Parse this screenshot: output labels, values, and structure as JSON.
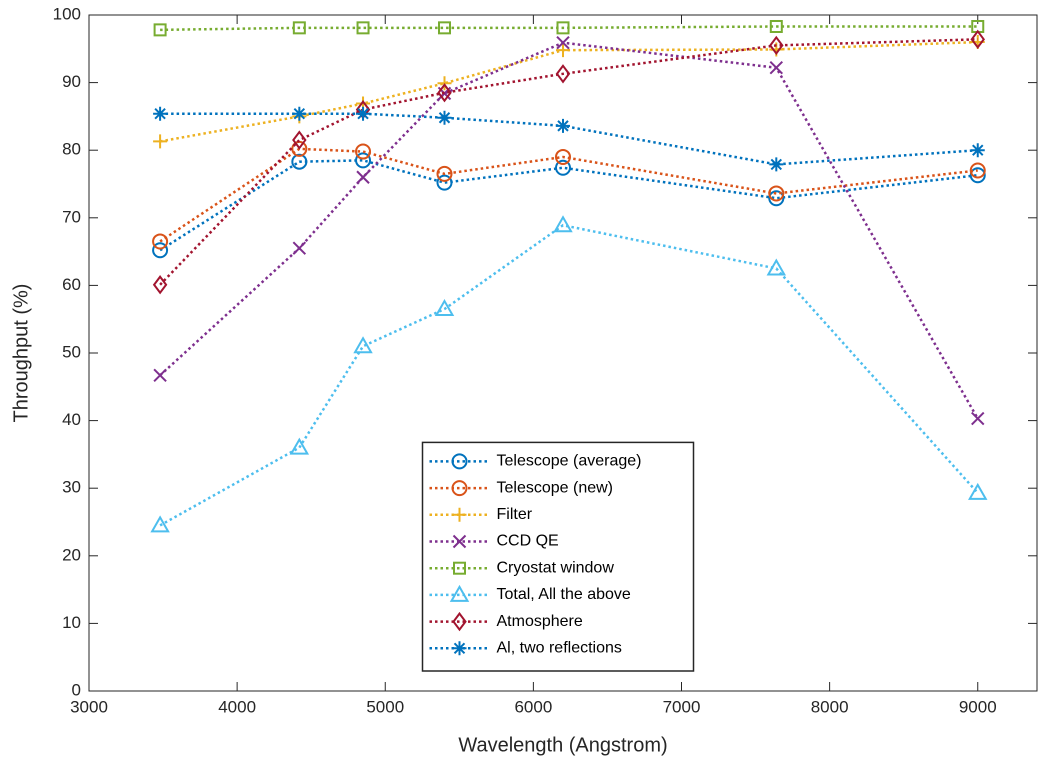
{
  "chart_data": {
    "type": "line",
    "x_label": "Wavelength (Angstrom)",
    "y_label": "Throughput (%)",
    "x": [
      3480,
      4420,
      4850,
      5400,
      6200,
      7640,
      9000
    ],
    "series": [
      {
        "name": "Telescope (average)",
        "color": "#0072bd",
        "marker": "circle",
        "values": [
          65.2,
          78.3,
          78.5,
          75.2,
          77.4,
          72.9,
          76.3
        ]
      },
      {
        "name": "Telescope (new)",
        "color": "#d95319",
        "marker": "circle",
        "values": [
          66.5,
          80.2,
          79.8,
          76.5,
          79.0,
          73.6,
          77.0
        ]
      },
      {
        "name": "Filter",
        "color": "#edb120",
        "marker": "plus",
        "values": [
          81.3,
          85.0,
          86.9,
          89.9,
          94.8,
          94.9,
          96.0
        ]
      },
      {
        "name": "CCD QE",
        "color": "#7e2f8e",
        "marker": "x",
        "values": [
          46.7,
          65.5,
          76.0,
          88.4,
          95.9,
          92.2,
          40.3
        ]
      },
      {
        "name": "Cryostat window",
        "color": "#77ac30",
        "marker": "square",
        "values": [
          97.8,
          98.1,
          98.1,
          98.1,
          98.1,
          98.3,
          98.3
        ]
      },
      {
        "name": "Total, All the above",
        "color": "#4dbeee",
        "marker": "triangle",
        "values": [
          24.5,
          36.0,
          51.0,
          56.5,
          68.9,
          62.5,
          29.3
        ]
      },
      {
        "name": "Atmosphere",
        "color": "#a2142f",
        "marker": "diamond",
        "values": [
          60.1,
          81.5,
          86.0,
          88.5,
          91.3,
          95.5,
          96.4
        ]
      },
      {
        "name": "Al, two reflections",
        "color": "#0072bd",
        "marker": "asterisk",
        "values": [
          85.4,
          85.4,
          85.4,
          84.8,
          83.6,
          77.9,
          80.0
        ]
      }
    ],
    "xlim": [
      3000,
      9400
    ],
    "xticks": [
      3000,
      4000,
      5000,
      6000,
      7000,
      8000,
      9000
    ],
    "ylim": [
      0,
      100
    ],
    "yticks": [
      0,
      10,
      20,
      30,
      40,
      50,
      60,
      70,
      80,
      90,
      100
    ],
    "grid": false,
    "legend": "bottom-center"
  }
}
